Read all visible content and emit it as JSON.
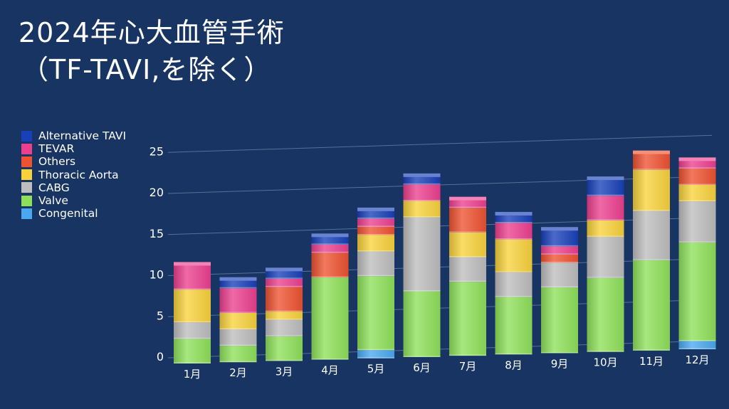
{
  "title": {
    "line1": "2024年心大血管手術",
    "line2": "（TF-TAVI,を除く）"
  },
  "chart_data": {
    "type": "bar",
    "stacked": true,
    "categories": [
      "1月",
      "2月",
      "3月",
      "4月",
      "5月",
      "6月",
      "7月",
      "8月",
      "9月",
      "10月",
      "11月",
      "12月"
    ],
    "ylim": [
      0,
      25
    ],
    "yticks": [
      0,
      5,
      10,
      15,
      20,
      25
    ],
    "grid": true,
    "legend_position": "top-left",
    "series": [
      {
        "name": "Congenital",
        "color": "#4aa8f0",
        "values": [
          0,
          0,
          0,
          0,
          1,
          0,
          0,
          0,
          0,
          0,
          0,
          1
        ]
      },
      {
        "name": "Valve",
        "color": "#8ee05a",
        "values": [
          3,
          2,
          3,
          10,
          9,
          8,
          9,
          7,
          8,
          9,
          11,
          12
        ]
      },
      {
        "name": "CABG",
        "color": "#bdbdbd",
        "values": [
          2,
          2,
          2,
          0,
          3,
          9,
          3,
          3,
          3,
          5,
          6,
          5
        ]
      },
      {
        "name": "Thoracic Aorta",
        "color": "#f8d23c",
        "values": [
          4,
          2,
          1,
          0,
          2,
          2,
          3,
          4,
          0,
          2,
          5,
          2
        ]
      },
      {
        "name": "Others",
        "color": "#ee5230",
        "values": [
          0,
          0,
          3,
          3,
          1,
          0,
          3,
          0,
          1,
          0,
          2,
          2
        ]
      },
      {
        "name": "TEVAR",
        "color": "#ec3f8e",
        "values": [
          3,
          3,
          1,
          1,
          1,
          2,
          1,
          2,
          1,
          3,
          0,
          1
        ]
      },
      {
        "name": "Alternative TAVI",
        "color": "#1840b8",
        "values": [
          0,
          1,
          1,
          1,
          1,
          1,
          0,
          1,
          2,
          2,
          0,
          0
        ]
      }
    ]
  }
}
